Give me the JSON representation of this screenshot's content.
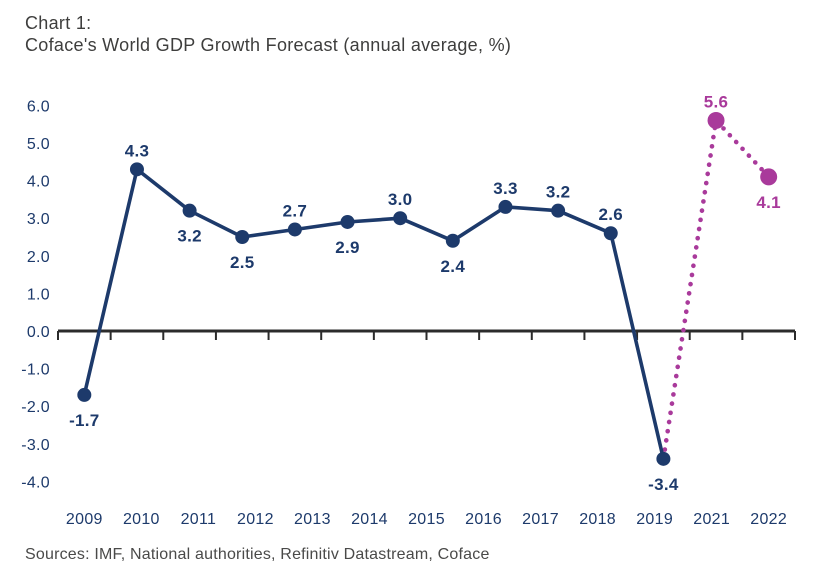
{
  "chart_data": {
    "type": "line",
    "title": "Chart 1:",
    "subtitle": "Coface's World GDP Growth Forecast (annual average, %)",
    "source": "Sources: IMF, National authorities, Refinitiv Datastream, Coface",
    "ylim": [
      -4.0,
      6.0
    ],
    "ytick_step": 1.0,
    "grid": false,
    "legend_position": "none",
    "x_axis_tick_labels": [
      "2009",
      "2010",
      "2011",
      "2012",
      "2013",
      "2014",
      "2015",
      "2016",
      "2017",
      "2018",
      "2019",
      "2021",
      "2022"
    ],
    "series": [
      {
        "name": "actual",
        "line_style": "solid",
        "color": "#1d3a6b"
      },
      {
        "name": "forecast",
        "line_style": "dotted",
        "color": "#a93a9b"
      }
    ],
    "points": [
      {
        "year": "2009",
        "value": -1.7,
        "label": "-1.7",
        "series": "actual",
        "label_position": "below"
      },
      {
        "year": "2010",
        "value": 4.3,
        "label": "4.3",
        "series": "actual",
        "label_position": "above"
      },
      {
        "year": "2011",
        "value": 3.2,
        "label": "3.2",
        "series": "actual",
        "label_position": "below"
      },
      {
        "year": "2012",
        "value": 2.5,
        "label": "2.5",
        "series": "actual",
        "label_position": "below"
      },
      {
        "year": "2013",
        "value": 2.7,
        "label": "2.7",
        "series": "actual",
        "label_position": "above"
      },
      {
        "year": "2014",
        "value": 2.9,
        "label": "2.9",
        "series": "actual",
        "label_position": "below"
      },
      {
        "year": "2015",
        "value": 3.0,
        "label": "3.0",
        "series": "actual",
        "label_position": "above"
      },
      {
        "year": "2016",
        "value": 2.4,
        "label": "2.4",
        "series": "actual",
        "label_position": "below"
      },
      {
        "year": "2017",
        "value": 3.3,
        "label": "3.3",
        "series": "actual",
        "label_position": "above"
      },
      {
        "year": "2018",
        "value": 3.2,
        "label": "3.2",
        "series": "actual",
        "label_position": "above"
      },
      {
        "year": "2019",
        "value": 2.6,
        "label": "2.6",
        "series": "actual",
        "label_position": "above"
      },
      {
        "year": "2020",
        "value": -3.4,
        "label": "-3.4",
        "series": "actual",
        "label_position": "below",
        "x_axis_label_shown": false
      },
      {
        "year": "2021",
        "value": 5.6,
        "label": "5.6",
        "series": "forecast",
        "label_position": "above"
      },
      {
        "year": "2022",
        "value": 4.1,
        "label": "4.1",
        "series": "forecast",
        "label_position": "below"
      }
    ],
    "colors": {
      "actual": "#1d3a6b",
      "forecast": "#a93a9b",
      "axis": "#2b2b2b",
      "tick_labels": "#1d3a6b",
      "title_text": "#3e3e3d",
      "source_text": "#4a4a49",
      "background": "#ffffff"
    }
  }
}
